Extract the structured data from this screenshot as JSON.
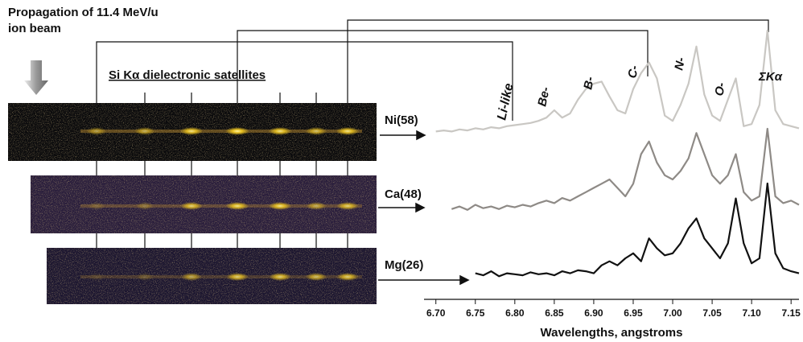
{
  "chart_data": {
    "type": "line",
    "title": "Propagation of 11.4 MeV/u",
    "subtitle": "ion beam",
    "image_label": "Si Kα dielectronic satellites",
    "x_label": "Wavelengths, angstroms",
    "annotations": [
      "Li-like",
      "Be-",
      "B-",
      "C-",
      "N-",
      "O-",
      "ΣKα"
    ],
    "xlim": [
      6.685,
      7.16
    ],
    "xticks": [
      {
        "value": 6.7,
        "label": "6.70"
      },
      {
        "value": 6.75,
        "label": "6.75"
      },
      {
        "value": 6.8,
        "label": "6.80"
      },
      {
        "value": 6.85,
        "label": "6.85"
      },
      {
        "value": 6.9,
        "label": "6.90"
      },
      {
        "value": 6.95,
        "label": "6.95"
      },
      {
        "value": 7.0,
        "label": "7.00"
      },
      {
        "value": 7.05,
        "label": "7.05"
      },
      {
        "value": 7.1,
        "label": "7.10"
      },
      {
        "value": 7.15,
        "label": "7.15"
      }
    ],
    "x": [
      6.7,
      6.71,
      6.72,
      6.73,
      6.74,
      6.75,
      6.76,
      6.77,
      6.78,
      6.79,
      6.8,
      6.81,
      6.82,
      6.83,
      6.84,
      6.85,
      6.86,
      6.87,
      6.88,
      6.89,
      6.9,
      6.91,
      6.92,
      6.93,
      6.94,
      6.95,
      6.96,
      6.97,
      6.98,
      6.99,
      7.0,
      7.01,
      7.02,
      7.03,
      7.04,
      7.05,
      7.06,
      7.07,
      7.08,
      7.09,
      7.1,
      7.11,
      7.12,
      7.13,
      7.14,
      7.15,
      7.16
    ],
    "series": [
      {
        "name": "Ni(58)",
        "color": "#c9c7c3",
        "values": [
          5,
          6,
          5,
          7,
          6,
          8,
          7,
          9,
          8,
          10,
          11,
          12,
          13,
          15,
          18,
          25,
          18,
          22,
          35,
          45,
          50,
          52,
          38,
          25,
          22,
          45,
          60,
          70,
          55,
          20,
          15,
          30,
          50,
          85,
          40,
          20,
          15,
          35,
          55,
          10,
          12,
          30,
          100,
          25,
          12,
          10,
          8
        ]
      },
      {
        "name": "Ca(48)",
        "color": "#8e8a86",
        "values": [
          null,
          null,
          5,
          8,
          4,
          10,
          6,
          8,
          5,
          9,
          7,
          10,
          8,
          12,
          15,
          12,
          18,
          15,
          20,
          25,
          30,
          35,
          40,
          30,
          20,
          35,
          70,
          85,
          60,
          45,
          40,
          50,
          65,
          95,
          70,
          45,
          35,
          45,
          70,
          25,
          15,
          20,
          100,
          20,
          12,
          15,
          10
        ]
      },
      {
        "name": "Mg(26)",
        "color": "#111111",
        "values": [
          null,
          null,
          null,
          null,
          null,
          10,
          8,
          12,
          7,
          10,
          9,
          8,
          11,
          9,
          10,
          8,
          12,
          10,
          13,
          12,
          10,
          18,
          22,
          18,
          25,
          30,
          22,
          45,
          35,
          28,
          30,
          40,
          55,
          65,
          45,
          35,
          25,
          40,
          85,
          40,
          20,
          25,
          100,
          30,
          15,
          12,
          10
        ]
      }
    ]
  }
}
